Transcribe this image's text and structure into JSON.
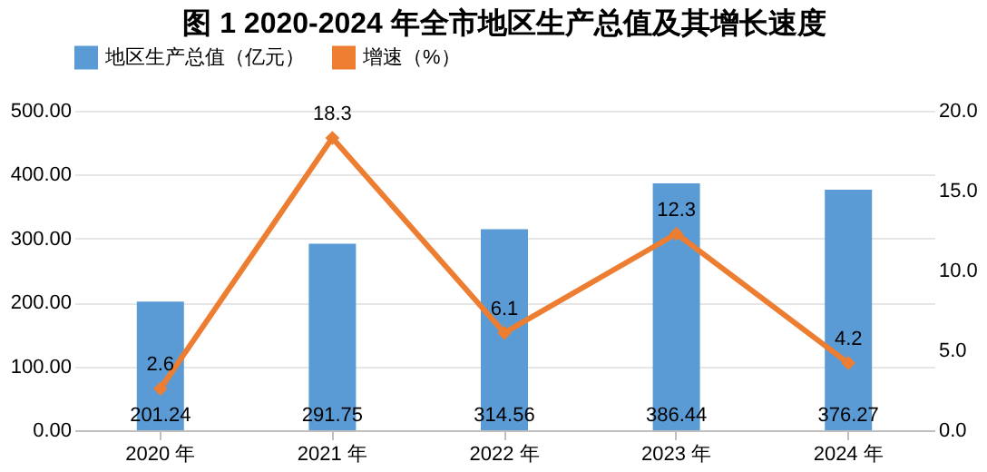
{
  "chart_data": {
    "type": "bar",
    "title": "图 1 2020-2024 年全市地区生产总值及其增长速度",
    "categories": [
      "2020 年",
      "2021 年",
      "2022 年",
      "2023 年",
      "2024 年"
    ],
    "series": [
      {
        "name": "地区生产总值（亿元）",
        "color": "#5b9bd5",
        "values": [
          201.24,
          291.75,
          314.56,
          386.44,
          376.27
        ]
      },
      {
        "name": "增速（%）",
        "type": "line",
        "axis": "y2",
        "color": "#ed7d31",
        "marker": "diamond",
        "values": [
          2.6,
          18.3,
          6.1,
          12.3,
          4.2
        ]
      }
    ],
    "ylim": [
      0,
      500
    ],
    "yticks": [
      {
        "value": 0,
        "label": "0.00"
      },
      {
        "value": 100,
        "label": "100.00"
      },
      {
        "value": 200,
        "label": "200.00"
      },
      {
        "value": 300,
        "label": "300.00"
      },
      {
        "value": 400,
        "label": "400.00"
      },
      {
        "value": 500,
        "label": "500.00"
      }
    ],
    "y2lim": [
      0,
      20
    ],
    "y2ticks": [
      {
        "value": 0,
        "label": "0.0"
      },
      {
        "value": 5,
        "label": "5.0"
      },
      {
        "value": 10,
        "label": "10.0"
      },
      {
        "value": 15,
        "label": "15.0"
      },
      {
        "value": 20,
        "label": "20.0"
      }
    ],
    "data_labels": true,
    "grid": "y",
    "legend": "top"
  }
}
